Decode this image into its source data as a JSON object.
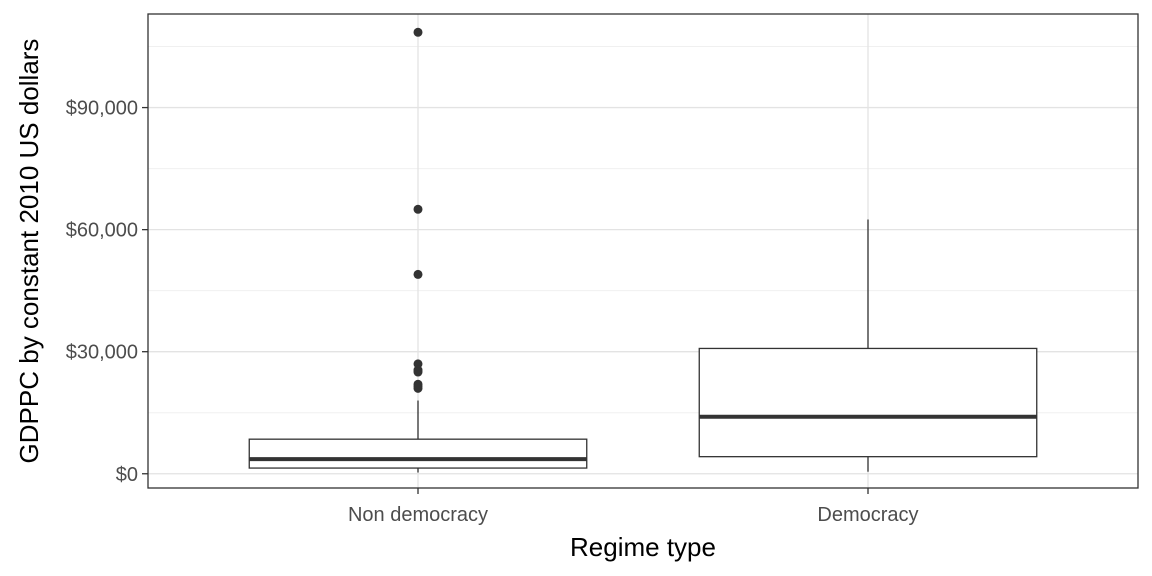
{
  "chart_data": {
    "type": "boxplot",
    "xlabel": "Regime type",
    "ylabel": "GDPPC by constant 2010 US dollars",
    "ylim": [
      -3500,
      113000
    ],
    "y_ticks": [
      0,
      30000,
      60000,
      90000
    ],
    "y_tick_labels": [
      "$0",
      "$30,000",
      "$60,000",
      "$90,000"
    ],
    "y_minor_ticks": [
      15000,
      45000,
      75000,
      105000
    ],
    "grid": true,
    "categories": [
      "Non democracy",
      "Democracy"
    ],
    "boxes": [
      {
        "category": "Non democracy",
        "whisker_low": 300,
        "q1": 1400,
        "median": 3600,
        "q3": 8500,
        "whisker_high": 18000,
        "outliers": [
          108500,
          65000,
          49000,
          27000,
          25500,
          25000,
          22000,
          21500,
          21000
        ]
      },
      {
        "category": "Democracy",
        "whisker_low": 500,
        "q1": 4200,
        "median": 14000,
        "q3": 30800,
        "whisker_high": 62500,
        "outliers": []
      }
    ]
  }
}
